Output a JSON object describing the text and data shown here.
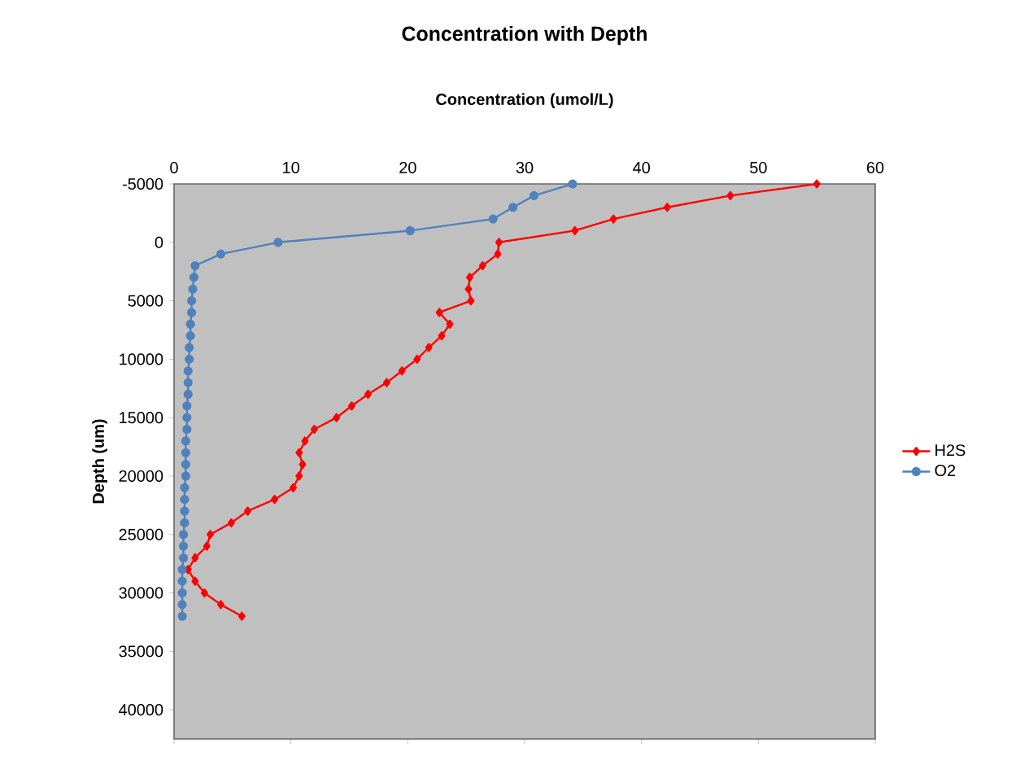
{
  "chart_data": {
    "type": "line",
    "title": "Concentration with Depth",
    "xlabel": "Concentration (umol/L)",
    "ylabel": "Depth (um)",
    "xlim": [
      0,
      60
    ],
    "xticks": [
      0,
      10,
      20,
      30,
      40,
      50,
      60
    ],
    "ylim": [
      42500,
      -5000
    ],
    "yticks": [
      -5000,
      0,
      5000,
      10000,
      15000,
      20000,
      25000,
      30000,
      35000,
      40000
    ],
    "legend": "right",
    "grid": false,
    "series": [
      {
        "name": "H2S",
        "color": "#ff0000",
        "marker": "diamond",
        "x": [
          55.0,
          47.6,
          42.2,
          37.6,
          34.3,
          27.8,
          27.7,
          26.4,
          25.3,
          25.2,
          25.4,
          22.7,
          23.6,
          22.9,
          21.8,
          20.8,
          19.5,
          18.2,
          16.6,
          15.2,
          13.9,
          12.0,
          11.2,
          10.7,
          11.0,
          10.7,
          10.2,
          8.6,
          6.3,
          4.9,
          3.1,
          2.8,
          1.8,
          1.2,
          1.8,
          2.6,
          4.0,
          5.8
        ],
        "values": [
          -5000,
          -4000,
          -3000,
          -2000,
          -1000,
          0,
          1000,
          2000,
          3000,
          4000,
          5000,
          6000,
          7000,
          8000,
          9000,
          10000,
          11000,
          12000,
          13000,
          14000,
          15000,
          16000,
          17000,
          18000,
          19000,
          20000,
          21000,
          22000,
          23000,
          24000,
          25000,
          26000,
          27000,
          28000,
          29000,
          30000,
          31000,
          32000
        ]
      },
      {
        "name": "O2",
        "color": "#4f81bd",
        "marker": "circle",
        "x": [
          34.1,
          30.8,
          29.0,
          27.3,
          20.2,
          8.9,
          4.0,
          1.8,
          1.7,
          1.6,
          1.5,
          1.5,
          1.4,
          1.4,
          1.3,
          1.3,
          1.2,
          1.2,
          1.2,
          1.1,
          1.1,
          1.1,
          1.0,
          1.0,
          1.0,
          1.0,
          0.9,
          0.9,
          0.9,
          0.9,
          0.8,
          0.8,
          0.8,
          0.7,
          0.7,
          0.7,
          0.7,
          0.7
        ],
        "values": [
          -5000,
          -4000,
          -3000,
          -2000,
          -1000,
          0,
          1000,
          2000,
          3000,
          4000,
          5000,
          6000,
          7000,
          8000,
          9000,
          10000,
          11000,
          12000,
          13000,
          14000,
          15000,
          16000,
          17000,
          18000,
          19000,
          20000,
          21000,
          22000,
          23000,
          24000,
          25000,
          26000,
          27000,
          28000,
          29000,
          30000,
          31000,
          32000
        ]
      }
    ]
  }
}
